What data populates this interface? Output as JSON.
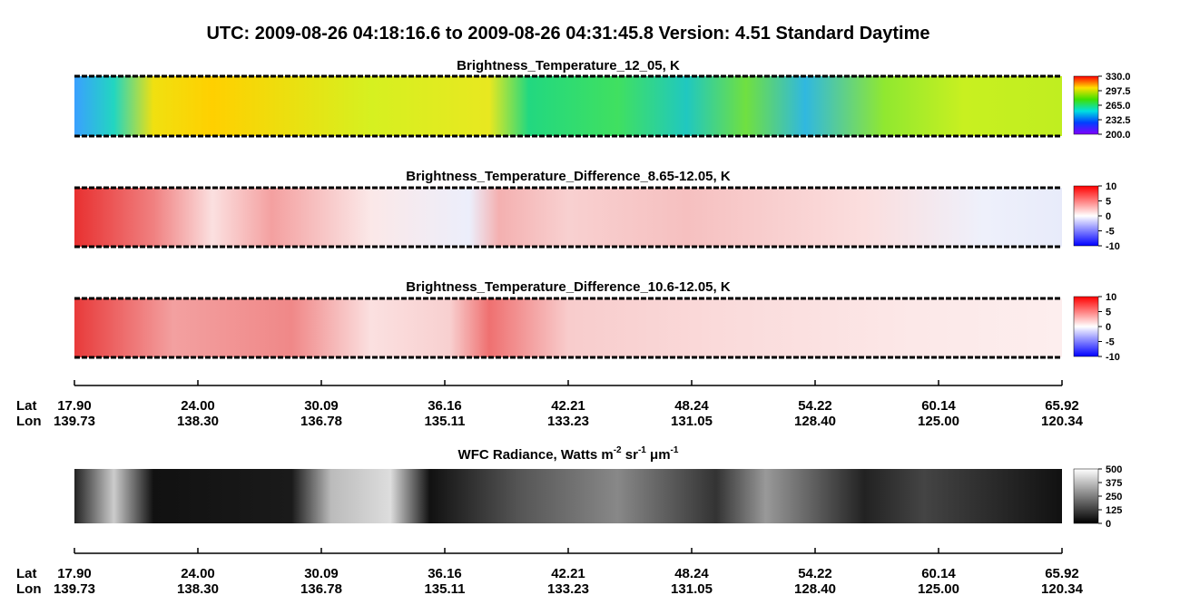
{
  "title": "UTC:  2009-08-26   04:18:16.6  to  2009-08-26   04:31:45.8    Version: 4.51  Standard Daytime",
  "panels": [
    {
      "title": "Brightness_Temperature_12_05, K",
      "colorbar_ticks": [
        "330.0",
        "297.5",
        "265.0",
        "232.5",
        "200.0"
      ]
    },
    {
      "title": "Brightness_Temperature_Difference_8.65-12.05, K",
      "colorbar_ticks": [
        "10",
        "5",
        "0",
        "-5",
        "-10"
      ]
    },
    {
      "title": "Brightness_Temperature_Difference_10.6-12.05, K",
      "colorbar_ticks": [
        "10",
        "5",
        "0",
        "-5",
        "-10"
      ]
    },
    {
      "title_parts": [
        "WFC Radiance, Watts m",
        "-2",
        " sr",
        "-1",
        " μm",
        "-1"
      ],
      "colorbar_ticks": [
        "500",
        "375",
        "250",
        "125",
        "0"
      ]
    }
  ],
  "axes": [
    {
      "lat_label": "Lat",
      "lon_label": "Lon",
      "lat": [
        "17.90",
        "24.00",
        "30.09",
        "36.16",
        "42.21",
        "48.24",
        "54.22",
        "60.14",
        "65.92"
      ],
      "lon": [
        "139.73",
        "138.30",
        "136.78",
        "135.11",
        "133.23",
        "131.05",
        "128.40",
        "125.00",
        "120.34"
      ]
    },
    {
      "lat_label": "Lat",
      "lon_label": "Lon",
      "lat": [
        "17.90",
        "24.00",
        "30.09",
        "36.16",
        "42.21",
        "48.24",
        "54.22",
        "60.14",
        "65.92"
      ],
      "lon": [
        "139.73",
        "138.30",
        "136.78",
        "135.11",
        "133.23",
        "131.05",
        "128.40",
        "125.00",
        "120.34"
      ]
    }
  ]
}
